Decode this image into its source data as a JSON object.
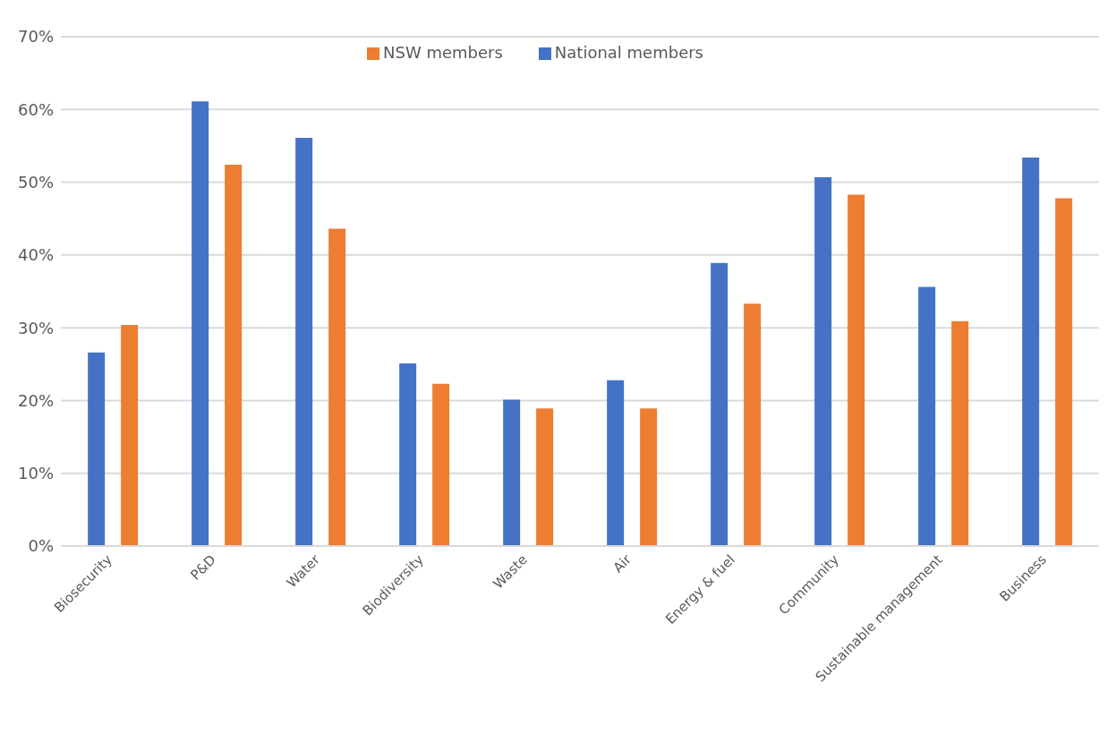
{
  "chart_data": {
    "type": "bar",
    "categories": [
      "Biosecurity",
      "P&D",
      "Water",
      "Biodiversity",
      "Waste",
      "Air",
      "Energy & fuel",
      "Community",
      "Sustainable management",
      "Business"
    ],
    "series": [
      {
        "name": "National members",
        "color": "#4472c4",
        "values": [
          26.6,
          61.1,
          56.1,
          25.1,
          20.1,
          22.8,
          38.9,
          50.7,
          35.6,
          53.4
        ]
      },
      {
        "name": "NSW members",
        "color": "#ed7d31",
        "values": [
          30.4,
          52.4,
          43.6,
          22.3,
          18.9,
          18.9,
          33.3,
          48.3,
          30.9,
          47.8
        ]
      }
    ],
    "ylim": [
      0,
      70
    ],
    "yticks": [
      {
        "value": 0,
        "label": "0%"
      },
      {
        "value": 10,
        "label": "10%"
      },
      {
        "value": 20,
        "label": "20%"
      },
      {
        "value": 30,
        "label": "30%"
      },
      {
        "value": 40,
        "label": "40%"
      },
      {
        "value": 50,
        "label": "50%"
      },
      {
        "value": 60,
        "label": "60%"
      },
      {
        "value": 70,
        "label": "70%"
      }
    ],
    "grid": "y",
    "legend": "top"
  }
}
